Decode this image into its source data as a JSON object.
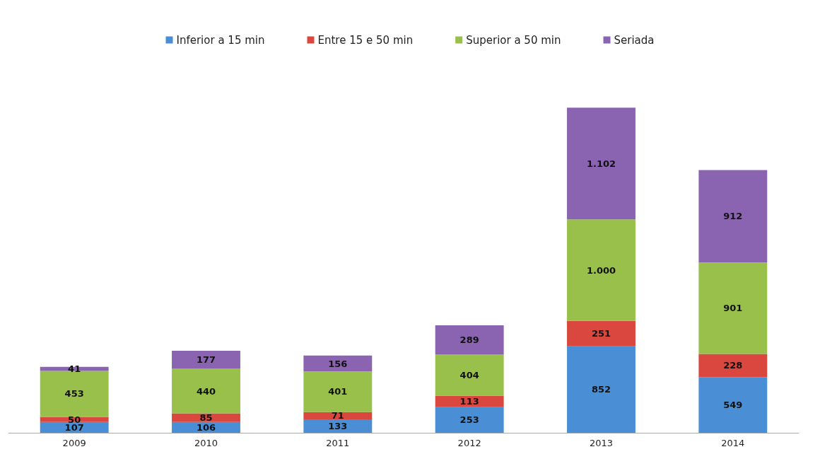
{
  "chart_data": {
    "type": "bar",
    "stacked": true,
    "categories": [
      "2009",
      "2010",
      "2011",
      "2012",
      "2013",
      "2014"
    ],
    "series": [
      {
        "name": "Inferior a 15 min",
        "color": "#4a8fd6",
        "values": [
          107,
          106,
          133,
          253,
          852,
          549
        ],
        "value_labels": [
          "107",
          "106",
          "133",
          "253",
          "852",
          "549"
        ]
      },
      {
        "name": "Entre 15 e 50 min",
        "color": "#d9473f",
        "values": [
          50,
          85,
          71,
          113,
          251,
          228
        ],
        "value_labels": [
          "50",
          "85",
          "71",
          "113",
          "251",
          "228"
        ]
      },
      {
        "name": "Superior a 50 min",
        "color": "#98c04a",
        "values": [
          453,
          440,
          401,
          404,
          1000,
          901
        ],
        "value_labels": [
          "453",
          "440",
          "401",
          "404",
          "1.000",
          "901"
        ]
      },
      {
        "name": "Seriada",
        "color": "#8a64b0",
        "values": [
          41,
          177,
          156,
          289,
          1102,
          912
        ],
        "value_labels": [
          "41",
          "177",
          "156",
          "289",
          "1.102",
          "912"
        ]
      }
    ],
    "legend": "top",
    "tick_labels": "x"
  }
}
